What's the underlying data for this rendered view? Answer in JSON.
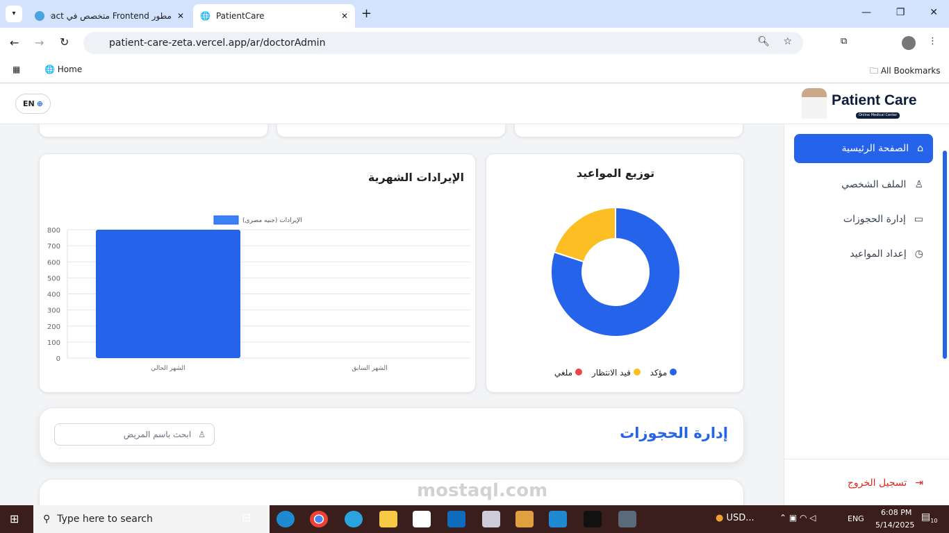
{
  "browser": {
    "tabs": [
      {
        "title": "مطور Frontend متخصص في React",
        "active": false
      },
      {
        "title": "PatientCare",
        "active": true
      }
    ],
    "url": "patient-care-zeta.vercel.app/ar/doctorAdmin",
    "bookmarks": {
      "home": "Home",
      "all": "All Bookmarks"
    }
  },
  "header": {
    "lang_button": "EN",
    "logo_text": "Patient Care",
    "logo_sub": "Online Medical Center"
  },
  "sidebar": {
    "items": [
      {
        "label": "الصفحة الرئيسية",
        "icon": "home-icon",
        "active": true
      },
      {
        "label": "الملف الشخصي",
        "icon": "user-icon"
      },
      {
        "label": "إدارة الحجوزات",
        "icon": "calendar-icon"
      },
      {
        "label": "إعداد المواعيد",
        "icon": "clock-icon"
      }
    ],
    "logout": "تسجيل الخروج"
  },
  "donut": {
    "title": "توزيع المواعيد",
    "legend": [
      {
        "label": "مؤكد",
        "color": "#2563eb"
      },
      {
        "label": "قيد الانتظار",
        "color": "#fbbf24"
      },
      {
        "label": "ملغي",
        "color": "#ef4444"
      }
    ]
  },
  "revenue": {
    "title": "الإيرادات الشهرية"
  },
  "chart_data": [
    {
      "type": "bar",
      "categories": [
        "الشهر السابق",
        "الشهر الحالي"
      ],
      "series": [
        {
          "name": "الإيرادات (جنيه مصرى)",
          "values": [
            0,
            800
          ],
          "color": "#2563eb"
        }
      ],
      "ylim": [
        0,
        800
      ],
      "yticks": [
        0,
        100,
        200,
        300,
        400,
        500,
        600,
        700,
        800
      ],
      "grid": true,
      "legend": "top"
    },
    {
      "type": "pie",
      "labels": [
        "مؤكد",
        "قيد الانتظار",
        "ملغي"
      ],
      "values": [
        4,
        1,
        0
      ],
      "colors": [
        "#2563eb",
        "#fbbf24",
        "#ef4444"
      ],
      "legend": "bottom"
    }
  ],
  "bookings": {
    "title": "إدارة الحجوزات",
    "search_placeholder": "ابحث باسم المريض"
  },
  "taskbar": {
    "search": "Type here to search",
    "weather": "USD...",
    "lang": "ENG",
    "time": "6:08 PM",
    "date": "5/14/2025",
    "notifications": "10"
  },
  "watermark": "mostaql.com"
}
